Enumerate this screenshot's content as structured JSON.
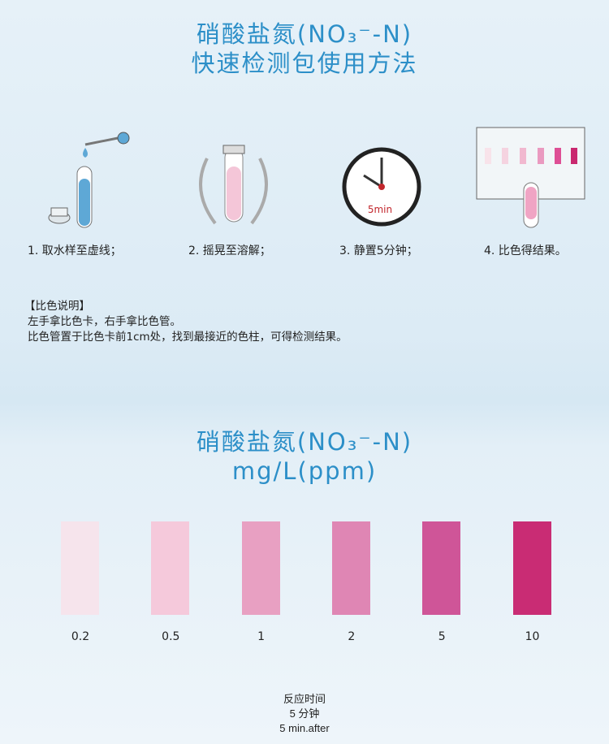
{
  "header": {
    "title_line1": "硝酸盐氮(NO₃⁻-N)",
    "title_line2": "快速检测包使用方法"
  },
  "steps": [
    {
      "label": "1. 取水样至虚线；",
      "icon": "test-tube-dropper-icon"
    },
    {
      "label": "2. 摇晃至溶解；",
      "icon": "shaking-tube-icon"
    },
    {
      "label": "3. 静置5分钟；",
      "icon": "clock-icon",
      "clock_text": "5min"
    },
    {
      "label": "4. 比色得结果。",
      "icon": "color-card-icon"
    }
  ],
  "note": {
    "heading": "【比色说明】",
    "line1": "左手拿比色卡，右手拿比色管。",
    "line2": "比色管置于比色卡前1cm处，找到最接近的色柱，可得检测结果。"
  },
  "chart_header": {
    "title_line1": "硝酸盐氮(NO₃⁻-N)",
    "title_line2": "mg/L(ppm)"
  },
  "swatches": [
    {
      "value": "0.2",
      "color": "#f6e4ec"
    },
    {
      "value": "0.5",
      "color": "#f5c9db"
    },
    {
      "value": "1",
      "color": "#e8a0c2"
    },
    {
      "value": "2",
      "color": "#df86b4"
    },
    {
      "value": "5",
      "color": "#cf5598"
    },
    {
      "value": "10",
      "color": "#c92c74"
    }
  ],
  "footer": {
    "line1": "反应时间",
    "line2": "5  分钟",
    "line3": "5  min.after"
  }
}
